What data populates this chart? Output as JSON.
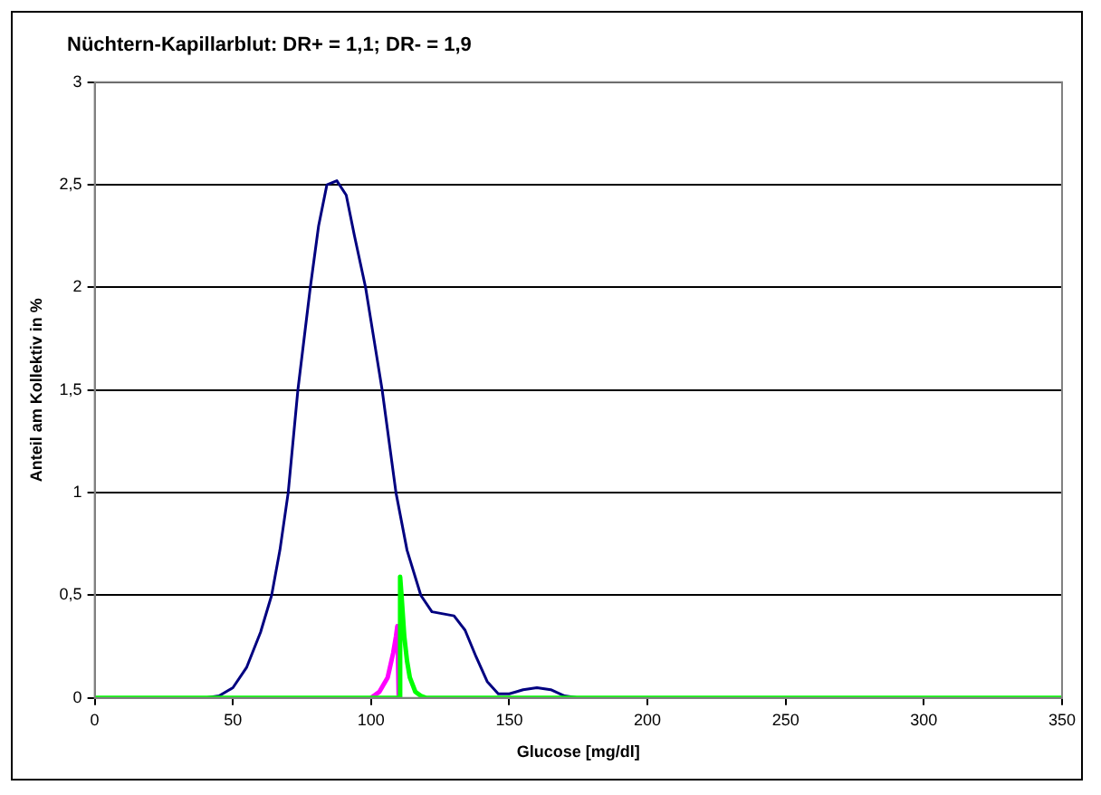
{
  "chart_data": {
    "type": "line",
    "title": "Nüchtern-Kapillarblut: DR+ = 1,1; DR- = 1,9",
    "xlabel": "Glucose [mg/dl]",
    "ylabel": "Anteil am Kollektiv in %",
    "xlim": [
      0,
      350
    ],
    "xticks": [
      0,
      50,
      100,
      150,
      200,
      250,
      300,
      350
    ],
    "ylim": [
      0,
      3
    ],
    "yticks": [
      0,
      {
        "value": 0.5,
        "label": "0,5"
      },
      1,
      {
        "value": 1.5,
        "label": "1,5"
      },
      2,
      {
        "value": 2.5,
        "label": "2,5"
      },
      3
    ],
    "grid": "y",
    "legend": false,
    "marker": "none",
    "line_style": "solid",
    "series": [
      {
        "color": "#000080",
        "x": [
          40,
          45,
          50,
          55,
          60,
          64,
          67,
          70,
          73.5,
          78,
          81,
          84,
          87.6,
          91,
          94,
          98,
          101,
          104,
          109,
          113,
          118,
          122,
          126,
          130,
          134,
          138,
          142,
          146,
          150,
          155,
          160,
          165,
          170,
          175
        ],
        "values": [
          0,
          0.01,
          0.05,
          0.15,
          0.32,
          0.5,
          0.72,
          1,
          1.5,
          2,
          2.3,
          2.5,
          2.52,
          2.45,
          2.25,
          2,
          1.75,
          1.5,
          1,
          0.72,
          0.5,
          0.42,
          0.41,
          0.4,
          0.33,
          0.2,
          0.08,
          0.02,
          0.02,
          0.04,
          0.05,
          0.04,
          0.01,
          0
        ]
      },
      {
        "color": "#ff00ff",
        "x": [
          100,
          103,
          106,
          108,
          109,
          109.5,
          110
        ],
        "values": [
          0,
          0.03,
          0.1,
          0.22,
          0.3,
          0.35,
          0
        ]
      },
      {
        "color": "#00ff00",
        "x": [
          0,
          110,
          110.5,
          111,
          112,
          113,
          114,
          116,
          118,
          120,
          350
        ],
        "values": [
          0,
          0,
          0.59,
          0.5,
          0.3,
          0.18,
          0.1,
          0.03,
          0.01,
          0,
          0
        ]
      }
    ]
  }
}
